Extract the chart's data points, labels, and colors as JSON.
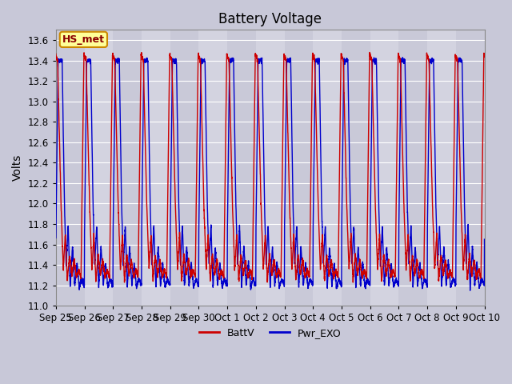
{
  "title": "Battery Voltage",
  "ylabel": "Volts",
  "ylim": [
    11.0,
    13.7
  ],
  "yticks": [
    11.0,
    11.2,
    11.4,
    11.6,
    11.8,
    12.0,
    12.2,
    12.4,
    12.6,
    12.8,
    13.0,
    13.2,
    13.4,
    13.6
  ],
  "xtick_labels": [
    "Sep 25",
    "Sep 26",
    "Sep 27",
    "Sep 28",
    "Sep 29",
    "Sep 30",
    "Oct 1",
    "Oct 2",
    "Oct 3",
    "Oct 4",
    "Oct 5",
    "Oct 6",
    "Oct 7",
    "Oct 8",
    "Oct 9",
    "Oct 10"
  ],
  "legend_labels": [
    "BattV",
    "Pwr_EXO"
  ],
  "legend_colors": [
    "#cc0000",
    "#0000cc"
  ],
  "line_color_battv": "#cc0000",
  "line_color_pwr": "#0000cc",
  "annotation_text": "HS_met",
  "annotation_bg": "#ffff99",
  "annotation_border": "#cc8800",
  "fig_facecolor": "#c8c8d8",
  "plot_facecolor": "#d8d8e4",
  "grid_color": "#ffffff",
  "title_fontsize": 12,
  "axis_label_fontsize": 10,
  "tick_fontsize": 8.5,
  "n_days": 15,
  "pts_per_day": 300
}
